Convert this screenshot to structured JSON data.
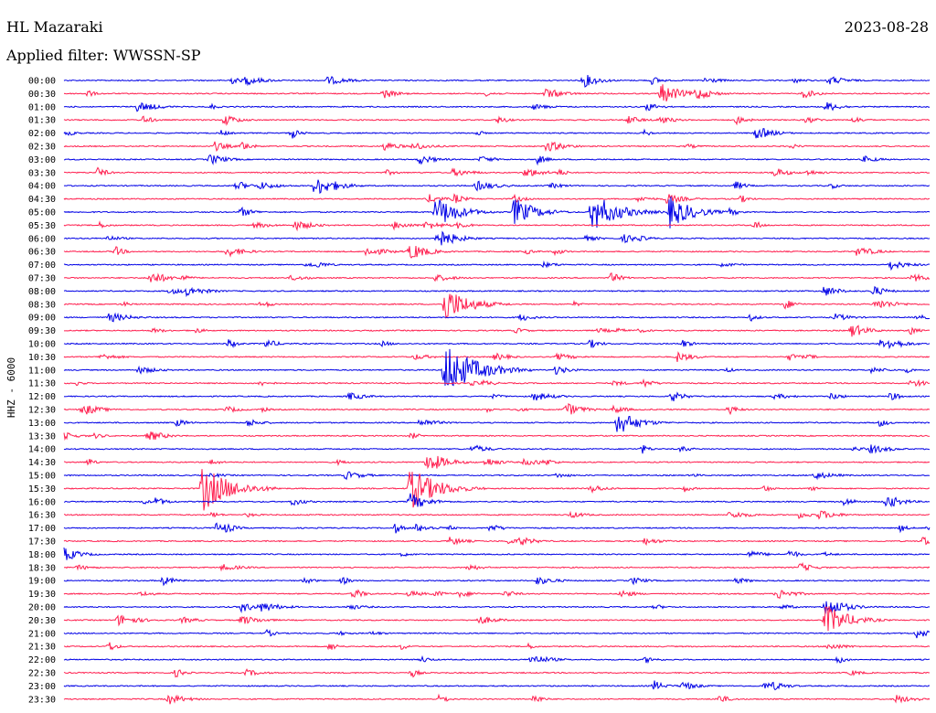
{
  "header": {
    "station": "HL Mazaraki",
    "date": "2023-08-28",
    "filter": "Applied filter: WWSSN-SP"
  },
  "chart_data": {
    "type": "line",
    "ylabel": "HHZ - 6000",
    "colors": {
      "even": "#0000e6",
      "odd": "#ff1f4f"
    },
    "ticks": [
      "00:00",
      "00:30",
      "01:00",
      "01:30",
      "02:00",
      "02:30",
      "03:00",
      "03:30",
      "04:00",
      "04:30",
      "05:00",
      "05:30",
      "06:00",
      "06:30",
      "07:00",
      "07:30",
      "08:00",
      "08:30",
      "09:00",
      "09:30",
      "10:00",
      "10:30",
      "11:00",
      "11:30",
      "12:00",
      "12:30",
      "13:00",
      "13:30",
      "14:00",
      "14:30",
      "15:00",
      "15:30",
      "16:00",
      "16:30",
      "17:00",
      "17:30",
      "18:00",
      "18:30",
      "19:00",
      "19:30",
      "20:00",
      "20:30",
      "21:00",
      "21:30",
      "22:00",
      "22:30",
      "23:00",
      "23:30"
    ],
    "events": [
      {
        "row": 0,
        "t": 0.6,
        "amp": 8
      },
      {
        "row": 1,
        "t": 0.69,
        "amp": 12
      },
      {
        "row": 1,
        "t": 0.73,
        "amp": 8
      },
      {
        "row": 2,
        "t": 0.88,
        "amp": 6
      },
      {
        "row": 4,
        "t": 0.8,
        "amp": 8
      },
      {
        "row": 7,
        "t": 0.82,
        "amp": 6
      },
      {
        "row": 8,
        "t": 0.29,
        "amp": 12
      },
      {
        "row": 10,
        "t": 0.52,
        "amp": 16
      },
      {
        "row": 10,
        "t": 0.61,
        "amp": 22
      },
      {
        "row": 10,
        "t": 0.43,
        "amp": 18
      },
      {
        "row": 10,
        "t": 0.7,
        "amp": 18
      },
      {
        "row": 12,
        "t": 0.43,
        "amp": 12
      },
      {
        "row": 13,
        "t": 0.4,
        "amp": 10
      },
      {
        "row": 15,
        "t": 0.1,
        "amp": 8
      },
      {
        "row": 17,
        "t": 0.44,
        "amp": 20
      },
      {
        "row": 19,
        "t": 0.91,
        "amp": 8
      },
      {
        "row": 22,
        "t": 0.44,
        "amp": 30
      },
      {
        "row": 25,
        "t": 0.58,
        "amp": 8
      },
      {
        "row": 26,
        "t": 0.64,
        "amp": 14
      },
      {
        "row": 29,
        "t": 0.42,
        "amp": 12
      },
      {
        "row": 31,
        "t": 0.16,
        "amp": 26
      },
      {
        "row": 31,
        "t": 0.4,
        "amp": 24
      },
      {
        "row": 32,
        "t": 0.4,
        "amp": 10
      },
      {
        "row": 32,
        "t": 0.95,
        "amp": 8
      },
      {
        "row": 36,
        "t": 0.0,
        "amp": 8
      },
      {
        "row": 40,
        "t": 0.88,
        "amp": 12
      },
      {
        "row": 41,
        "t": 0.88,
        "amp": 18
      }
    ]
  }
}
